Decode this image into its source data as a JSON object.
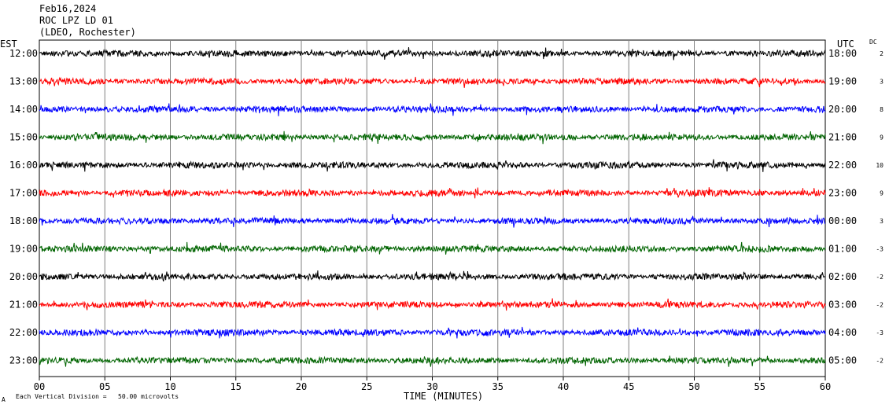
{
  "header": {
    "date": "Feb16,2024",
    "station": "ROC LPZ LD 01",
    "network": "(LDEO, Rochester)"
  },
  "left_axis_label": "EST",
  "right_axis_label": "UTC",
  "dc_label": "DC",
  "footer": {
    "scale_note": "Each Vertical Division =   50.00 microvolts",
    "corner_mark": "A"
  },
  "colors": {
    "black": "#000000",
    "red": "#ff0000",
    "blue": "#0000ff",
    "green": "#006400",
    "grid": "#808080"
  },
  "chart_data": {
    "type": "line",
    "xlabel": "TIME (MINUTES)",
    "xlim": [
      0,
      60
    ],
    "x_ticks": [
      "00",
      "05",
      "10",
      "15",
      "20",
      "25",
      "30",
      "35",
      "40",
      "45",
      "50",
      "55",
      "60"
    ],
    "rows": [
      {
        "est": "12:00",
        "utc": "18:00",
        "dc": "2",
        "color": "black"
      },
      {
        "est": "13:00",
        "utc": "19:00",
        "dc": "3",
        "color": "red"
      },
      {
        "est": "14:00",
        "utc": "20:00",
        "dc": "8",
        "color": "blue"
      },
      {
        "est": "15:00",
        "utc": "21:00",
        "dc": "9",
        "color": "green"
      },
      {
        "est": "16:00",
        "utc": "22:00",
        "dc": "10",
        "color": "black"
      },
      {
        "est": "17:00",
        "utc": "23:00",
        "dc": "9",
        "color": "red"
      },
      {
        "est": "18:00",
        "utc": "00:00",
        "dc": "3",
        "color": "blue"
      },
      {
        "est": "19:00",
        "utc": "01:00",
        "dc": "-3",
        "color": "green"
      },
      {
        "est": "20:00",
        "utc": "02:00",
        "dc": "-2",
        "color": "black"
      },
      {
        "est": "21:00",
        "utc": "03:00",
        "dc": "-2",
        "color": "red"
      },
      {
        "est": "22:00",
        "utc": "04:00",
        "dc": "-3",
        "color": "blue"
      },
      {
        "est": "23:00",
        "utc": "05:00",
        "dc": "-2",
        "color": "green"
      }
    ]
  }
}
